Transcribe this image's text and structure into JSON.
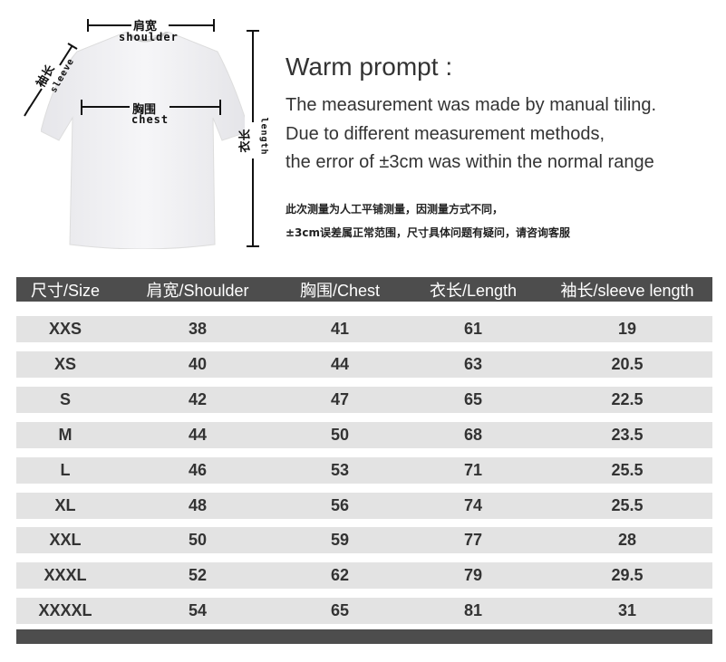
{
  "diagram": {
    "shoulder_cn": "肩宽",
    "shoulder_en": "shoulder",
    "chest_cn": "胸围",
    "chest_en": "chest",
    "sleeve_cn": "袖长",
    "sleeve_en": "sleeve",
    "length_cn": "衣长",
    "length_en": "length"
  },
  "prompt": {
    "title": "Warm prompt :",
    "lines": [
      "The measurement was made by manual tiling.",
      "Due to different measurement methods,",
      "the error of ±3cm was within the normal range"
    ],
    "cn_lines": [
      "此次测量为人工平铺测量，因测量方式不同，",
      "±3cm误差属正常范围，尺寸具体问题有疑问，请咨询客服"
    ]
  },
  "table": {
    "headers": [
      "尺寸/Size",
      "肩宽/Shoulder",
      "胸围/Chest",
      "衣长/Length",
      "袖长/sleeve length"
    ],
    "rows": [
      [
        "XXS",
        "38",
        "41",
        "61",
        "19"
      ],
      [
        "XS",
        "40",
        "44",
        "63",
        "20.5"
      ],
      [
        "S",
        "42",
        "47",
        "65",
        "22.5"
      ],
      [
        "M",
        "44",
        "50",
        "68",
        "23.5"
      ],
      [
        "L",
        "46",
        "53",
        "71",
        "25.5"
      ],
      [
        "XL",
        "48",
        "56",
        "74",
        "25.5"
      ],
      [
        "XXL",
        "50",
        "59",
        "77",
        "28"
      ],
      [
        "XXXL",
        "52",
        "62",
        "79",
        "29.5"
      ],
      [
        "XXXXL",
        "54",
        "65",
        "81",
        "31"
      ]
    ]
  }
}
